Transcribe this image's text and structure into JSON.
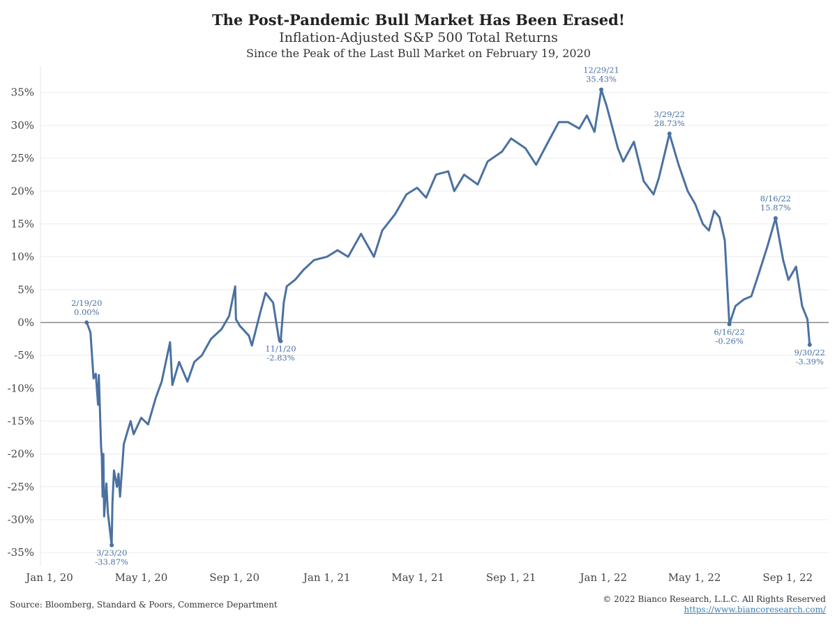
{
  "header": {
    "title": "The Post-Pandemic Bull Market Has Been Erased!",
    "subtitle": "Inflation-Adjusted S&P 500 Total Returns",
    "subtitle2": "Since the Peak of the Last Bull Market on February 19, 2020"
  },
  "footer": {
    "source": "Source: Bloomberg, Standard & Poors, Commerce Department",
    "copyright": "© 2022 Bianco Research, L.L.C. All Rights Reserved",
    "link": "https://www.biancoresearch.com/"
  },
  "colors": {
    "line": "#4a71a1",
    "annotation": "#4a71a1",
    "zero_line": "#888888",
    "grid": "#ececec"
  },
  "chart_data": {
    "type": "line",
    "title": "The Post-Pandemic Bull Market Has Been Erased!",
    "xlabel": "",
    "ylabel": "",
    "ylim": [
      -37,
      39
    ],
    "xlim": [
      "2019-12-20",
      "2022-10-25"
    ],
    "grid": true,
    "legend": "none",
    "x_ticks": [
      {
        "date": "2020-01-01",
        "label": "Jan 1, 20"
      },
      {
        "date": "2020-05-01",
        "label": "May 1, 20"
      },
      {
        "date": "2020-09-01",
        "label": "Sep 1, 20"
      },
      {
        "date": "2021-01-01",
        "label": "Jan 1, 21"
      },
      {
        "date": "2021-05-01",
        "label": "May 1, 21"
      },
      {
        "date": "2021-09-01",
        "label": "Sep 1, 21"
      },
      {
        "date": "2022-01-01",
        "label": "Jan 1, 22"
      },
      {
        "date": "2022-05-01",
        "label": "May 1, 22"
      },
      {
        "date": "2022-09-01",
        "label": "Sep 1, 22"
      }
    ],
    "y_ticks": [
      {
        "value": 35,
        "label": "35%"
      },
      {
        "value": 30,
        "label": "30%"
      },
      {
        "value": 25,
        "label": "25%"
      },
      {
        "value": 20,
        "label": "20%"
      },
      {
        "value": 15,
        "label": "15%"
      },
      {
        "value": 10,
        "label": "10%"
      },
      {
        "value": 5,
        "label": "5%"
      },
      {
        "value": 0,
        "label": "0%"
      },
      {
        "value": -5,
        "label": "-5%"
      },
      {
        "value": -10,
        "label": "-10%"
      },
      {
        "value": -15,
        "label": "-15%"
      },
      {
        "value": -20,
        "label": "-20%"
      },
      {
        "value": -25,
        "label": "-25%"
      },
      {
        "value": -30,
        "label": "-30%"
      },
      {
        "value": -35,
        "label": "-35%"
      }
    ],
    "series": [
      {
        "values": [
          [
            "2020-02-19",
            0.0
          ],
          [
            "2020-02-24",
            -1.5
          ],
          [
            "2020-02-28",
            -8.5
          ],
          [
            "2020-03-02",
            -7.8
          ],
          [
            "2020-03-05",
            -12.5
          ],
          [
            "2020-03-06",
            -8.0
          ],
          [
            "2020-03-09",
            -18.8
          ],
          [
            "2020-03-10",
            -20.5
          ],
          [
            "2020-03-11",
            -26.5
          ],
          [
            "2020-03-12",
            -20.0
          ],
          [
            "2020-03-13",
            -29.5
          ],
          [
            "2020-03-16",
            -24.5
          ],
          [
            "2020-03-18",
            -29.0
          ],
          [
            "2020-03-23",
            -33.87
          ],
          [
            "2020-03-24",
            -27.5
          ],
          [
            "2020-03-26",
            -22.5
          ],
          [
            "2020-03-30",
            -25.0
          ],
          [
            "2020-04-01",
            -23.0
          ],
          [
            "2020-04-03",
            -26.5
          ],
          [
            "2020-04-08",
            -18.5
          ],
          [
            "2020-04-13",
            -16.5
          ],
          [
            "2020-04-17",
            -15.0
          ],
          [
            "2020-04-21",
            -17.0
          ],
          [
            "2020-05-01",
            -14.5
          ],
          [
            "2020-05-10",
            -15.5
          ],
          [
            "2020-05-20",
            -11.5
          ],
          [
            "2020-05-28",
            -9.0
          ],
          [
            "2020-06-08",
            -3.0
          ],
          [
            "2020-06-11",
            -9.5
          ],
          [
            "2020-06-20",
            -6.0
          ],
          [
            "2020-07-01",
            -9.0
          ],
          [
            "2020-07-10",
            -6.0
          ],
          [
            "2020-07-20",
            -5.0
          ],
          [
            "2020-08-01",
            -2.5
          ],
          [
            "2020-08-15",
            -1.0
          ],
          [
            "2020-08-25",
            1.0
          ],
          [
            "2020-09-02",
            5.5
          ],
          [
            "2020-09-03",
            0.5
          ],
          [
            "2020-09-08",
            -0.5
          ],
          [
            "2020-09-20",
            -2.0
          ],
          [
            "2020-09-24",
            -3.5
          ],
          [
            "2020-10-05",
            1.5
          ],
          [
            "2020-10-12",
            4.5
          ],
          [
            "2020-10-22",
            3.0
          ],
          [
            "2020-10-30",
            -2.83
          ],
          [
            "2020-11-01",
            -2.83
          ],
          [
            "2020-11-05",
            3.0
          ],
          [
            "2020-11-09",
            5.5
          ],
          [
            "2020-11-20",
            6.5
          ],
          [
            "2020-12-01",
            8.0
          ],
          [
            "2020-12-15",
            9.5
          ],
          [
            "2021-01-01",
            10.0
          ],
          [
            "2021-01-15",
            11.0
          ],
          [
            "2021-01-29",
            10.0
          ],
          [
            "2021-02-15",
            13.5
          ],
          [
            "2021-03-04",
            10.0
          ],
          [
            "2021-03-15",
            14.0
          ],
          [
            "2021-04-01",
            16.5
          ],
          [
            "2021-04-16",
            19.5
          ],
          [
            "2021-04-30",
            20.5
          ],
          [
            "2021-05-12",
            19.0
          ],
          [
            "2021-05-25",
            22.5
          ],
          [
            "2021-06-10",
            23.0
          ],
          [
            "2021-06-18",
            20.0
          ],
          [
            "2021-07-01",
            22.5
          ],
          [
            "2021-07-19",
            21.0
          ],
          [
            "2021-08-01",
            24.5
          ],
          [
            "2021-08-20",
            26.0
          ],
          [
            "2021-09-01",
            28.0
          ],
          [
            "2021-09-20",
            26.5
          ],
          [
            "2021-10-04",
            24.0
          ],
          [
            "2021-10-20",
            27.5
          ],
          [
            "2021-11-03",
            30.5
          ],
          [
            "2021-11-15",
            30.5
          ],
          [
            "2021-11-30",
            29.5
          ],
          [
            "2021-12-10",
            31.5
          ],
          [
            "2021-12-20",
            29.0
          ],
          [
            "2021-12-29",
            35.43
          ],
          [
            "2022-01-05",
            33.0
          ],
          [
            "2022-01-20",
            26.5
          ],
          [
            "2022-01-27",
            24.5
          ],
          [
            "2022-02-10",
            27.5
          ],
          [
            "2022-02-23",
            21.5
          ],
          [
            "2022-03-08",
            19.5
          ],
          [
            "2022-03-15",
            22.0
          ],
          [
            "2022-03-29",
            28.73
          ],
          [
            "2022-04-10",
            24.0
          ],
          [
            "2022-04-22",
            20.0
          ],
          [
            "2022-05-02",
            18.0
          ],
          [
            "2022-05-12",
            15.0
          ],
          [
            "2022-05-20",
            14.0
          ],
          [
            "2022-05-27",
            17.0
          ],
          [
            "2022-06-03",
            16.0
          ],
          [
            "2022-06-10",
            12.5
          ],
          [
            "2022-06-16",
            -0.26
          ],
          [
            "2022-06-24",
            2.5
          ],
          [
            "2022-07-05",
            3.5
          ],
          [
            "2022-07-15",
            4.0
          ],
          [
            "2022-07-25",
            7.5
          ],
          [
            "2022-08-05",
            11.5
          ],
          [
            "2022-08-16",
            15.87
          ],
          [
            "2022-08-26",
            9.5
          ],
          [
            "2022-09-02",
            6.5
          ],
          [
            "2022-09-12",
            8.5
          ],
          [
            "2022-09-20",
            2.5
          ],
          [
            "2022-09-27",
            0.5
          ],
          [
            "2022-09-30",
            -3.39
          ]
        ]
      }
    ],
    "annotations": [
      {
        "date": "2020-02-19",
        "value": 0.0,
        "label_date": "2/19/20",
        "label_value": "0.00%",
        "position": "above"
      },
      {
        "date": "2020-03-23",
        "value": -33.87,
        "label_date": "3/23/20",
        "label_value": "-33.87%",
        "position": "below"
      },
      {
        "date": "2020-11-01",
        "value": -2.83,
        "label_date": "11/1/20",
        "label_value": "-2.83%",
        "position": "below"
      },
      {
        "date": "2021-12-29",
        "value": 35.43,
        "label_date": "12/29/21",
        "label_value": "35.43%",
        "position": "above"
      },
      {
        "date": "2022-03-29",
        "value": 28.73,
        "label_date": "3/29/22",
        "label_value": "28.73%",
        "position": "above"
      },
      {
        "date": "2022-06-16",
        "value": -0.26,
        "label_date": "6/16/22",
        "label_value": "-0.26%",
        "position": "below"
      },
      {
        "date": "2022-08-16",
        "value": 15.87,
        "label_date": "8/16/22",
        "label_value": "15.87%",
        "position": "above"
      },
      {
        "date": "2022-09-30",
        "value": -3.39,
        "label_date": "9/30/22",
        "label_value": "-3.39%",
        "position": "below"
      }
    ]
  }
}
